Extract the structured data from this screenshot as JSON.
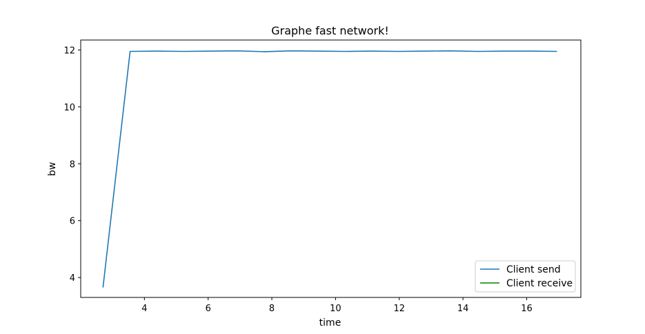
{
  "chart_data": {
    "type": "line",
    "title": "Graphe fast network!",
    "xlabel": "time",
    "ylabel": "bw",
    "xlim": [
      2.0,
      17.7
    ],
    "ylim": [
      3.3,
      12.35
    ],
    "xticks": [
      4,
      6,
      8,
      10,
      12,
      14,
      16
    ],
    "yticks": [
      4,
      6,
      8,
      10,
      12
    ],
    "grid": false,
    "legend_position": "lower-right",
    "series": [
      {
        "name": "Client send",
        "color": "#1f77b4",
        "x": [
          2.7,
          3.55,
          4.4,
          5.25,
          6.05,
          6.9,
          7.75,
          8.6,
          9.45,
          10.3,
          11.1,
          11.95,
          12.8,
          13.6,
          14.45,
          15.3,
          16.15,
          16.95
        ],
        "y": [
          3.65,
          11.95,
          11.96,
          11.95,
          11.96,
          11.97,
          11.94,
          11.97,
          11.96,
          11.95,
          11.96,
          11.95,
          11.96,
          11.97,
          11.95,
          11.96,
          11.96,
          11.95
        ]
      },
      {
        "name": "Client receive",
        "color": "#008000",
        "x": [],
        "y": []
      }
    ]
  }
}
